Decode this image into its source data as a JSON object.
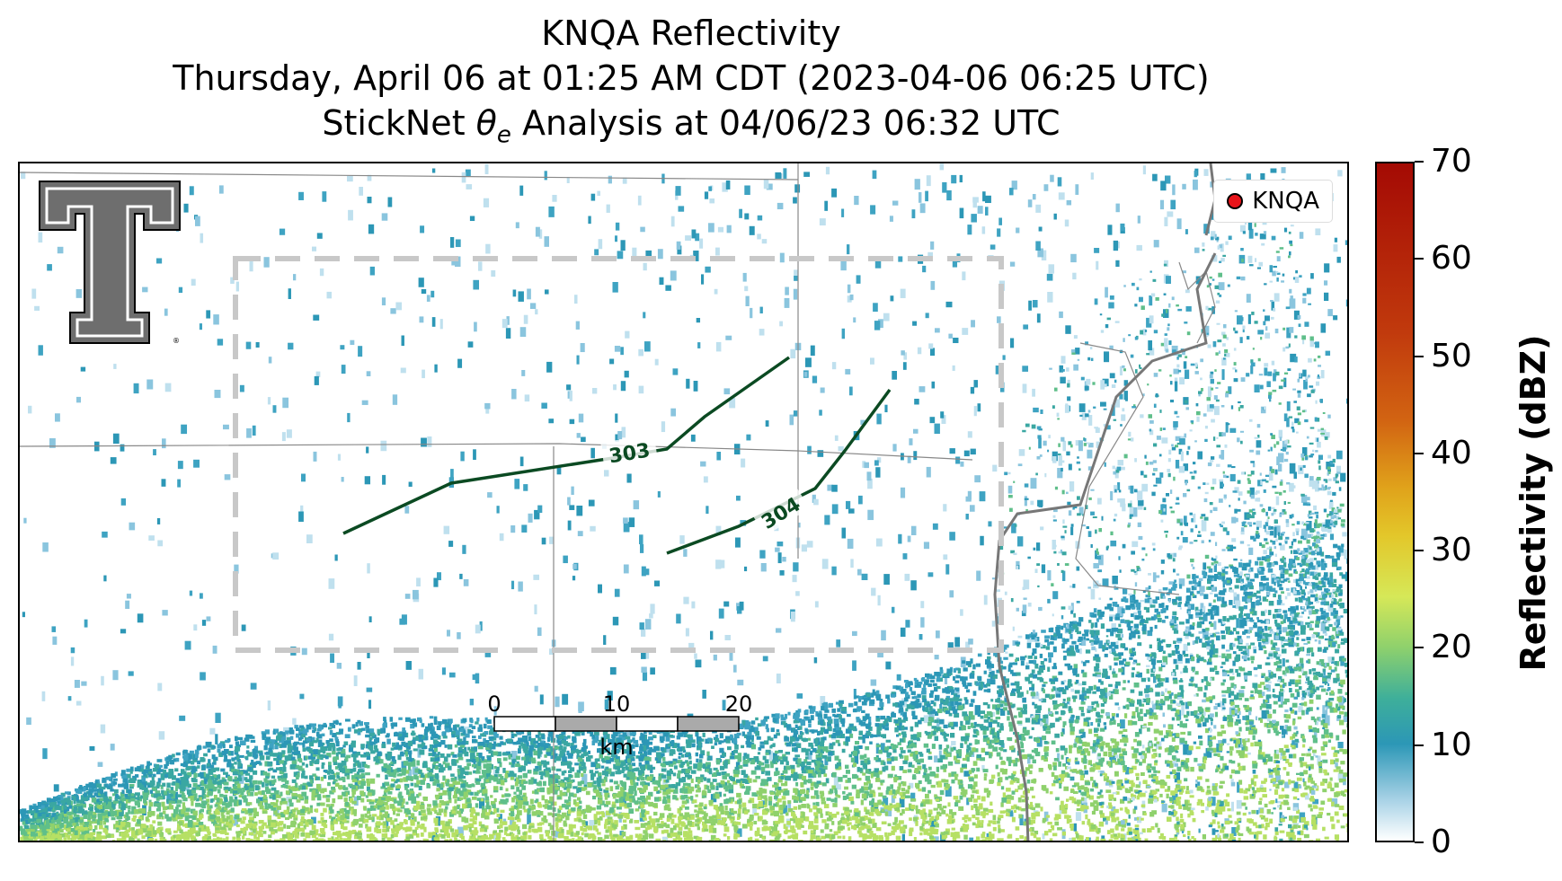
{
  "title": {
    "line1": "KNQA Reflectivity",
    "line2": "Thursday, April 06 at 01:25 AM CDT (2023-04-06 06:25 UTC)",
    "line3": "StickNet θe Analysis at 04/06/23 06:32 UTC"
  },
  "legend": {
    "label": "KNQA",
    "marker_color": "#e8141a"
  },
  "contours": [
    {
      "label": "303",
      "color": "#0b4a22"
    },
    {
      "label": "304",
      "color": "#0b4a22"
    }
  ],
  "scalebar": {
    "ticks": [
      "0",
      "10",
      "20"
    ],
    "unit": "km"
  },
  "colorbar": {
    "label": "Reflectivity (dBZ)",
    "ticks": [
      "0",
      "10",
      "20",
      "30",
      "40",
      "50",
      "60",
      "70"
    ],
    "range": [
      0,
      70
    ],
    "colors": {
      "low": "#ffffff",
      "mid": "#2c97b6",
      "green": "#8fd16c",
      "yellow": "#e3c72a",
      "high": "#a40a04"
    }
  },
  "analysis_box": {
    "style": "dashed",
    "color": "#c8c8c8"
  },
  "logo": {
    "name": "texas-tech-double-t-logo"
  }
}
